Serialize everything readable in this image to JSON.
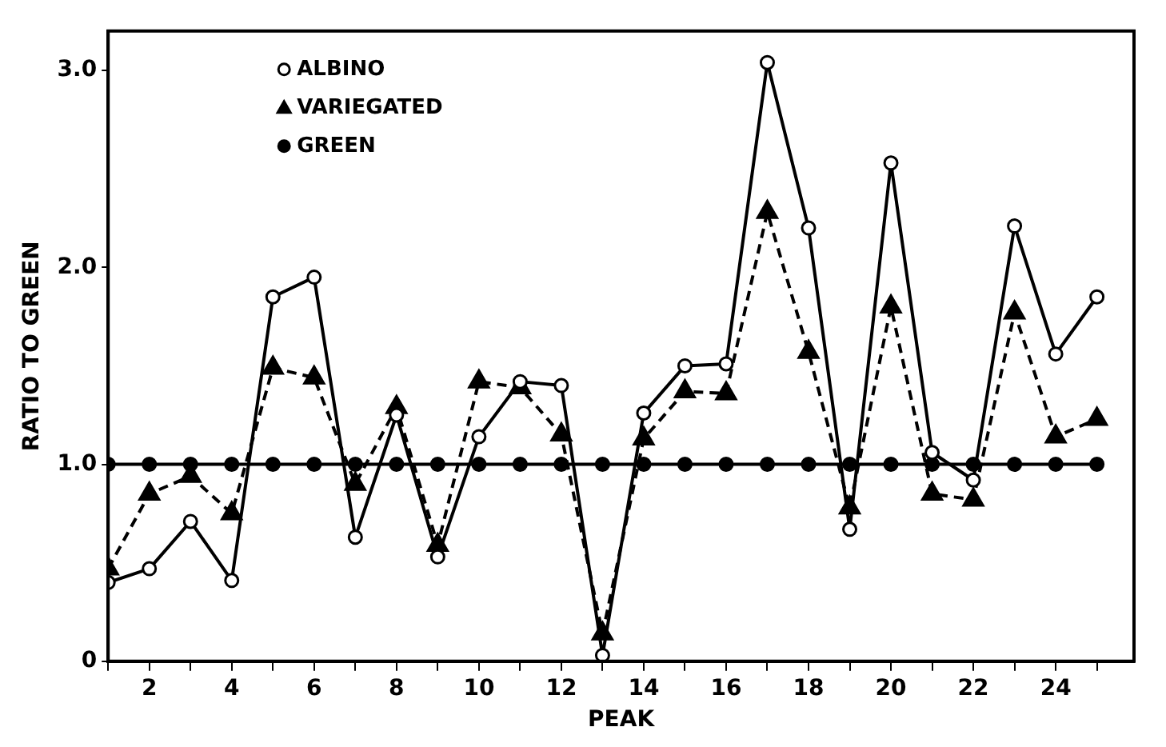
{
  "chart_data": {
    "type": "line",
    "xlabel": "PEAK",
    "ylabel": "RATIO TO GREEN",
    "x": [
      1,
      2,
      3,
      4,
      5,
      6,
      7,
      8,
      9,
      10,
      11,
      12,
      13,
      14,
      15,
      16,
      17,
      18,
      19,
      20,
      21,
      22,
      23,
      24,
      25
    ],
    "series": [
      {
        "name": "ALBINO",
        "color": "#000000",
        "marker": "circle",
        "line_style": "solid",
        "values": [
          0.4,
          0.47,
          0.71,
          0.41,
          1.85,
          1.95,
          0.63,
          1.25,
          0.53,
          1.14,
          1.42,
          1.4,
          0.03,
          1.26,
          1.5,
          1.51,
          3.04,
          2.2,
          0.67,
          2.53,
          1.06,
          0.92,
          2.21,
          1.56,
          1.85
        ]
      },
      {
        "name": "VARIEGATED",
        "color": "#000000",
        "marker": "triangle",
        "line_style": "dashed",
        "values": [
          0.47,
          0.85,
          0.94,
          0.75,
          1.49,
          1.44,
          0.9,
          1.29,
          0.59,
          1.42,
          1.39,
          1.15,
          0.14,
          1.13,
          1.37,
          1.36,
          2.28,
          1.57,
          0.78,
          1.8,
          0.85,
          0.82,
          1.77,
          1.14,
          1.23
        ]
      },
      {
        "name": "GREEN",
        "color": "#000000",
        "marker": "circle_filled",
        "line_style": "solid",
        "values": [
          1,
          1,
          1,
          1,
          1,
          1,
          1,
          1,
          1,
          1,
          1,
          1,
          1,
          1,
          1,
          1,
          1,
          1,
          1,
          1,
          1,
          1,
          1,
          1,
          1
        ]
      }
    ],
    "xlim": [
      1,
      25.9
    ],
    "xticks": [
      {
        "value": 1,
        "label": null
      },
      2,
      {
        "value": 3,
        "label": null
      },
      4,
      {
        "value": 5,
        "label": null
      },
      6,
      {
        "value": 7,
        "label": null
      },
      8,
      {
        "value": 9,
        "label": null
      },
      10,
      {
        "value": 11,
        "label": null
      },
      12,
      {
        "value": 13,
        "label": null
      },
      14,
      {
        "value": 15,
        "label": null
      },
      16,
      {
        "value": 17,
        "label": null
      },
      18,
      {
        "value": 19,
        "label": null
      },
      20,
      {
        "value": 21,
        "label": null
      },
      22,
      {
        "value": 23,
        "label": null
      },
      24,
      {
        "value": 25,
        "label": null
      }
    ],
    "ylim": [
      0,
      3.2
    ],
    "yticks": [
      0,
      {
        "value": 1,
        "label": "1.0"
      },
      {
        "value": 2,
        "label": "2.0"
      },
      {
        "value": 3,
        "label": "3.0"
      }
    ],
    "grid": false,
    "legend": "top left"
  }
}
